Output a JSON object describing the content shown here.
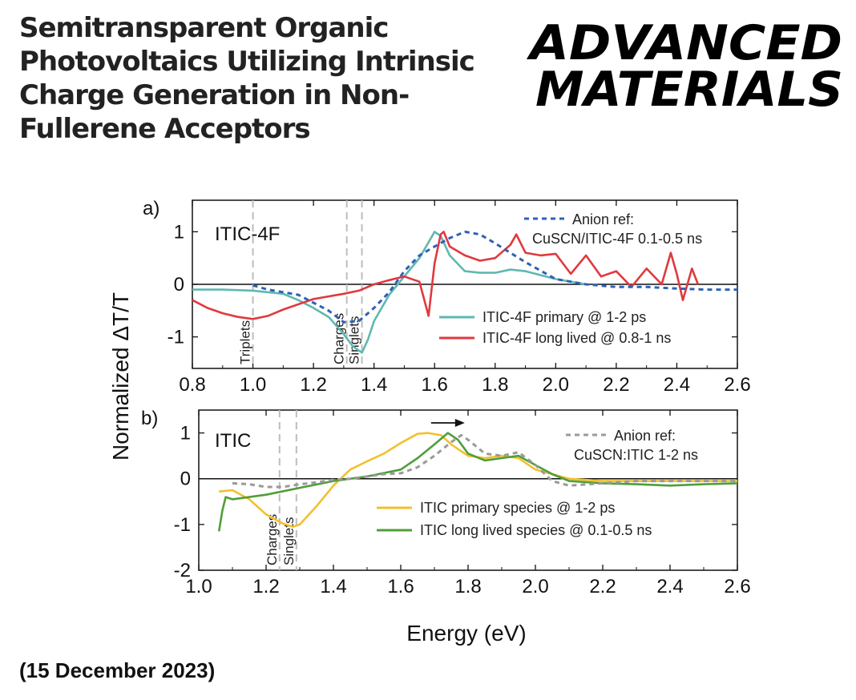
{
  "headline": {
    "lines": [
      "Semitransparent Organic",
      "Photovoltaics Utilizing Intrinsic",
      "Charge Generation in Non-",
      "Fullerene Acceptors"
    ]
  },
  "journal": {
    "line1": "ADVANCED",
    "line2": "MATERIALS"
  },
  "date": "(15 December 2023)",
  "colors": {
    "teal": "#5fb8b0",
    "red": "#e0393e",
    "blue_dash": "#2f62b4",
    "yellow": "#f2c02e",
    "green": "#4f9e3a",
    "gray_dash": "#9a9a9a",
    "vline": "#bdbdbd"
  },
  "chart_data": [
    {
      "type": "line",
      "panel": "a)",
      "sample": "ITIC-4F",
      "xlim": [
        0.8,
        2.6
      ],
      "ylim": [
        -1.6,
        1.6
      ],
      "xticks": [
        "0.8",
        "1.0",
        "1.2",
        "1.4",
        "1.6",
        "1.8",
        "2.0",
        "2.2",
        "2.4",
        "2.6"
      ],
      "yticks": [
        "-1",
        "0",
        "1"
      ],
      "ylabel": "Normalized ΔT/T",
      "annotations": [
        {
          "text": "Triplets",
          "x": 1.0
        },
        {
          "text": "Charges",
          "x": 1.31
        },
        {
          "text": "Singlets",
          "x": 1.36
        }
      ],
      "series": [
        {
          "name": "ITIC-4F primary @ 1-2 ps",
          "color": "teal",
          "style": "solid",
          "x": [
            0.8,
            0.9,
            1.0,
            1.1,
            1.15,
            1.2,
            1.25,
            1.3,
            1.33,
            1.36,
            1.38,
            1.4,
            1.45,
            1.5,
            1.55,
            1.58,
            1.6,
            1.62,
            1.65,
            1.7,
            1.75,
            1.8,
            1.85,
            1.9,
            2.0,
            2.05,
            2.1
          ],
          "y": [
            -0.1,
            -0.1,
            -0.12,
            -0.18,
            -0.3,
            -0.45,
            -0.62,
            -0.95,
            -1.18,
            -1.3,
            -1.05,
            -0.7,
            -0.2,
            0.15,
            0.5,
            0.8,
            1.0,
            0.92,
            0.55,
            0.25,
            0.22,
            0.22,
            0.28,
            0.25,
            0.1,
            0.05,
            0.0
          ]
        },
        {
          "name": "ITIC-4F long lived @ 0.8-1 ns",
          "color": "red",
          "style": "solid",
          "x": [
            0.8,
            0.85,
            0.9,
            0.95,
            1.0,
            1.05,
            1.1,
            1.2,
            1.3,
            1.35,
            1.4,
            1.45,
            1.5,
            1.55,
            1.58,
            1.6,
            1.62,
            1.63,
            1.65,
            1.7,
            1.75,
            1.8,
            1.85,
            1.87,
            1.9,
            1.95,
            2.0,
            2.05,
            2.1,
            2.15,
            2.2,
            2.25,
            2.3,
            2.35,
            2.38,
            2.4,
            2.42,
            2.45,
            2.47
          ],
          "y": [
            -0.3,
            -0.45,
            -0.55,
            -0.62,
            -0.66,
            -0.6,
            -0.48,
            -0.28,
            -0.18,
            -0.12,
            0.0,
            0.08,
            0.15,
            0.05,
            -0.6,
            0.4,
            0.95,
            1.0,
            0.72,
            0.55,
            0.45,
            0.5,
            0.75,
            0.95,
            0.6,
            0.55,
            0.58,
            0.2,
            0.55,
            0.15,
            0.25,
            -0.05,
            0.3,
            0.0,
            0.6,
            0.2,
            -0.3,
            0.3,
            0.0
          ]
        },
        {
          "name": "Anion ref:",
          "name2": "CuSCN/ITIC-4F 0.1-0.5 ns",
          "color": "blue_dash",
          "style": "dashed",
          "x": [
            1.0,
            1.05,
            1.1,
            1.15,
            1.2,
            1.25,
            1.3,
            1.35,
            1.4,
            1.45,
            1.5,
            1.55,
            1.6,
            1.65,
            1.7,
            1.75,
            1.8,
            1.85,
            1.9,
            2.0,
            2.1,
            2.2,
            2.3,
            2.4,
            2.5,
            2.6
          ],
          "y": [
            -0.02,
            -0.1,
            -0.15,
            -0.2,
            -0.35,
            -0.5,
            -0.72,
            -0.7,
            -0.45,
            -0.15,
            0.25,
            0.55,
            0.72,
            0.88,
            1.0,
            0.95,
            0.78,
            0.6,
            0.42,
            0.1,
            0.0,
            -0.05,
            -0.05,
            -0.08,
            -0.1,
            -0.1
          ]
        }
      ]
    },
    {
      "type": "line",
      "panel": "b)",
      "sample": "ITIC",
      "xlim": [
        1.0,
        2.6
      ],
      "ylim": [
        -2.0,
        1.5
      ],
      "xticks": [
        "1.0",
        "1.2",
        "1.4",
        "1.6",
        "1.8",
        "2.0",
        "2.2",
        "2.4",
        "2.6"
      ],
      "yticks": [
        "-2",
        "-1",
        "0",
        "1"
      ],
      "xlabel": "Energy (eV)",
      "annotations": [
        {
          "text": "Charges",
          "x": 1.24
        },
        {
          "text": "Singlets",
          "x": 1.29
        }
      ],
      "series": [
        {
          "name": "ITIC primary species @ 1-2 ps",
          "color": "yellow",
          "style": "solid",
          "x": [
            1.06,
            1.1,
            1.15,
            1.2,
            1.25,
            1.28,
            1.3,
            1.35,
            1.4,
            1.45,
            1.5,
            1.55,
            1.6,
            1.65,
            1.68,
            1.72,
            1.75,
            1.8,
            1.85,
            1.9,
            1.95,
            2.0,
            2.1,
            2.2,
            2.3,
            2.4,
            2.5,
            2.6
          ],
          "y": [
            -0.28,
            -0.25,
            -0.45,
            -0.78,
            -0.98,
            -1.05,
            -1.0,
            -0.6,
            -0.15,
            0.2,
            0.38,
            0.55,
            0.78,
            0.98,
            1.0,
            0.95,
            0.75,
            0.5,
            0.45,
            0.5,
            0.45,
            0.2,
            0.0,
            -0.05,
            -0.05,
            -0.05,
            -0.05,
            -0.05
          ]
        },
        {
          "name": "ITIC long lived species @ 0.1-0.5 ns",
          "color": "green",
          "style": "solid",
          "x": [
            1.06,
            1.07,
            1.08,
            1.1,
            1.15,
            1.2,
            1.3,
            1.4,
            1.5,
            1.6,
            1.65,
            1.7,
            1.74,
            1.77,
            1.8,
            1.85,
            1.9,
            1.95,
            2.0,
            2.05,
            2.1,
            2.2,
            2.3,
            2.4,
            2.5,
            2.6
          ],
          "y": [
            -1.15,
            -0.7,
            -0.4,
            -0.45,
            -0.4,
            -0.35,
            -0.2,
            -0.05,
            0.05,
            0.2,
            0.45,
            0.75,
            1.0,
            0.85,
            0.55,
            0.4,
            0.45,
            0.5,
            0.3,
            0.1,
            -0.05,
            -0.1,
            -0.12,
            -0.15,
            -0.12,
            -0.1
          ]
        },
        {
          "name": "Anion ref:",
          "name2": "CuSCN:ITIC 1-2 ns",
          "color": "gray_dash",
          "style": "dashed",
          "x": [
            1.1,
            1.15,
            1.2,
            1.25,
            1.3,
            1.35,
            1.4,
            1.45,
            1.5,
            1.55,
            1.6,
            1.65,
            1.7,
            1.75,
            1.78,
            1.8,
            1.85,
            1.9,
            1.95,
            2.0,
            2.05,
            2.1,
            2.2,
            2.3,
            2.4,
            2.5,
            2.6
          ],
          "y": [
            -0.1,
            -0.12,
            -0.18,
            -0.18,
            -0.12,
            -0.08,
            -0.02,
            0.0,
            0.05,
            0.1,
            0.12,
            0.25,
            0.5,
            0.8,
            0.95,
            0.85,
            0.55,
            0.5,
            0.58,
            0.3,
            -0.05,
            -0.15,
            -0.1,
            -0.05,
            -0.05,
            -0.05,
            -0.05
          ]
        }
      ]
    }
  ]
}
